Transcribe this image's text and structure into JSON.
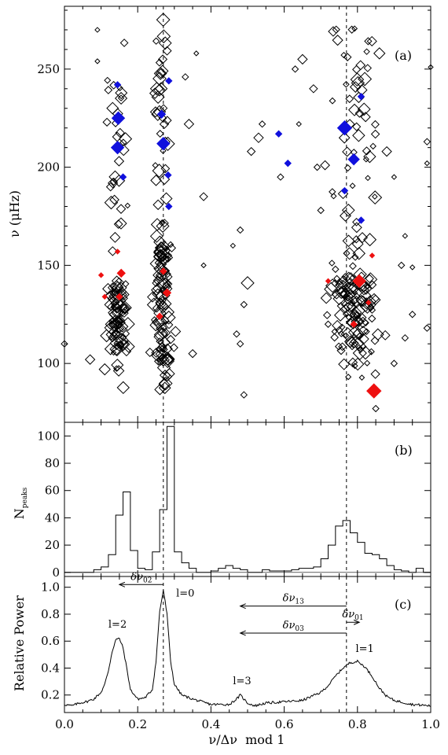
{
  "figure": {
    "panels": [
      "(a)",
      "(b)",
      "(c)"
    ]
  },
  "chart_data": [
    {
      "panel": "(a)",
      "type": "scatter",
      "ylabel": "ν (μHz)",
      "xlim": [
        0.0,
        1.0
      ],
      "ylim": [
        70,
        282
      ],
      "yticks": [
        100,
        150,
        200,
        250
      ],
      "vlines": [
        0.27,
        0.77
      ],
      "colors": {
        "open": "#000000",
        "blue": "#1010dd",
        "red": "#ee1010"
      },
      "filled_blue": [
        {
          "x": 0.145,
          "y": 242,
          "s": 4
        },
        {
          "x": 0.147,
          "y": 225,
          "s": 8
        },
        {
          "x": 0.145,
          "y": 210,
          "s": 8
        },
        {
          "x": 0.16,
          "y": 195,
          "s": 4
        },
        {
          "x": 0.265,
          "y": 227,
          "s": 5
        },
        {
          "x": 0.27,
          "y": 212,
          "s": 8
        },
        {
          "x": 0.285,
          "y": 244,
          "s": 4
        },
        {
          "x": 0.283,
          "y": 196,
          "s": 4
        },
        {
          "x": 0.285,
          "y": 180,
          "s": 4
        },
        {
          "x": 0.585,
          "y": 217,
          "s": 4
        },
        {
          "x": 0.61,
          "y": 202,
          "s": 4
        },
        {
          "x": 0.765,
          "y": 220,
          "s": 9
        },
        {
          "x": 0.79,
          "y": 204,
          "s": 7
        },
        {
          "x": 0.765,
          "y": 188,
          "s": 4
        },
        {
          "x": 0.81,
          "y": 236,
          "s": 4
        },
        {
          "x": 0.81,
          "y": 173,
          "s": 4
        }
      ],
      "filled_red": [
        {
          "x": 0.1,
          "y": 145,
          "s": 3
        },
        {
          "x": 0.145,
          "y": 157,
          "s": 3
        },
        {
          "x": 0.155,
          "y": 146,
          "s": 5
        },
        {
          "x": 0.15,
          "y": 134,
          "s": 4
        },
        {
          "x": 0.11,
          "y": 134,
          "s": 3
        },
        {
          "x": 0.27,
          "y": 147,
          "s": 4
        },
        {
          "x": 0.28,
          "y": 136,
          "s": 5
        },
        {
          "x": 0.26,
          "y": 124,
          "s": 4
        },
        {
          "x": 0.72,
          "y": 142,
          "s": 3
        },
        {
          "x": 0.805,
          "y": 142,
          "s": 8
        },
        {
          "x": 0.845,
          "y": 86,
          "s": 9
        },
        {
          "x": 0.79,
          "y": 120,
          "s": 4
        },
        {
          "x": 0.84,
          "y": 155,
          "s": 3
        },
        {
          "x": 0.83,
          "y": 131,
          "s": 3
        }
      ],
      "open_points": "density-sampled cluster; see markers"
    },
    {
      "panel": "(b)",
      "type": "bar",
      "ylabel": "N_peaks",
      "xlim": [
        0.0,
        1.0
      ],
      "ylim": [
        -3,
        110
      ],
      "yticks": [
        0,
        20,
        40,
        60,
        80,
        100
      ],
      "bin_width": 0.02,
      "x": [
        0.0,
        0.02,
        0.04,
        0.06,
        0.08,
        0.1,
        0.12,
        0.14,
        0.16,
        0.18,
        0.2,
        0.22,
        0.24,
        0.26,
        0.28,
        0.3,
        0.32,
        0.34,
        0.36,
        0.38,
        0.4,
        0.42,
        0.44,
        0.46,
        0.48,
        0.5,
        0.52,
        0.54,
        0.56,
        0.58,
        0.6,
        0.62,
        0.64,
        0.66,
        0.68,
        0.7,
        0.72,
        0.74,
        0.76,
        0.78,
        0.8,
        0.82,
        0.84,
        0.86,
        0.88,
        0.9,
        0.92,
        0.94,
        0.96,
        0.98
      ],
      "values": [
        0,
        0,
        0,
        0,
        2,
        4,
        13,
        42,
        59,
        16,
        3,
        2,
        15,
        46,
        107,
        15,
        7,
        3,
        0,
        0,
        1,
        3,
        5,
        3,
        2,
        0,
        0,
        2,
        1,
        1,
        1,
        2,
        3,
        3,
        4,
        10,
        20,
        34,
        38,
        29,
        22,
        14,
        13,
        10,
        5,
        2,
        1,
        0,
        3,
        0
      ]
    },
    {
      "panel": "(c)",
      "type": "line",
      "ylabel": "Relative Power",
      "xlabel": "ν/Δν  mod 1",
      "xlim": [
        0.0,
        1.0
      ],
      "ylim": [
        0.07,
        1.08
      ],
      "xticks": [
        "0.0",
        "0.2",
        "0.4",
        "0.6",
        "0.8",
        "1.0"
      ],
      "yticks": [
        "0.2",
        "0.4",
        "0.6",
        "0.8",
        "1.0"
      ],
      "x": [
        0.0,
        0.02,
        0.04,
        0.06,
        0.08,
        0.1,
        0.11,
        0.12,
        0.13,
        0.14,
        0.15,
        0.16,
        0.17,
        0.18,
        0.2,
        0.22,
        0.24,
        0.25,
        0.26,
        0.27,
        0.28,
        0.29,
        0.3,
        0.32,
        0.35,
        0.4,
        0.45,
        0.47,
        0.48,
        0.49,
        0.5,
        0.52,
        0.55,
        0.6,
        0.65,
        0.7,
        0.72,
        0.74,
        0.76,
        0.78,
        0.8,
        0.82,
        0.84,
        0.86,
        0.88,
        0.9,
        0.95,
        1.0
      ],
      "values": [
        0.13,
        0.12,
        0.14,
        0.15,
        0.17,
        0.22,
        0.28,
        0.38,
        0.52,
        0.61,
        0.62,
        0.55,
        0.4,
        0.24,
        0.17,
        0.18,
        0.24,
        0.45,
        0.82,
        0.98,
        0.8,
        0.45,
        0.28,
        0.2,
        0.17,
        0.13,
        0.13,
        0.17,
        0.2,
        0.17,
        0.14,
        0.12,
        0.14,
        0.15,
        0.16,
        0.22,
        0.27,
        0.34,
        0.4,
        0.44,
        0.45,
        0.41,
        0.34,
        0.25,
        0.19,
        0.16,
        0.13,
        0.12
      ],
      "vlines": [
        0.27,
        0.77
      ],
      "labels": [
        {
          "text": "l=2",
          "x": 0.145,
          "y": 0.7
        },
        {
          "text": "l=0",
          "x": 0.33,
          "y": 0.93
        },
        {
          "text": "l=3",
          "x": 0.485,
          "y": 0.28
        },
        {
          "text": "l=1",
          "x": 0.82,
          "y": 0.52
        }
      ],
      "arrows": [
        {
          "sym": "δν",
          "sub": "02",
          "from": 0.27,
          "to": 0.15,
          "y": 1.02
        },
        {
          "sym": "δν",
          "sub": "13",
          "from": 0.77,
          "to": 0.48,
          "y": 0.86
        },
        {
          "sym": "δν",
          "sub": "03",
          "from": 0.77,
          "to": 0.48,
          "y": 0.66
        },
        {
          "sym": "δν",
          "sub": "01",
          "from": 0.77,
          "to": 0.805,
          "y": 0.74
        }
      ]
    }
  ]
}
